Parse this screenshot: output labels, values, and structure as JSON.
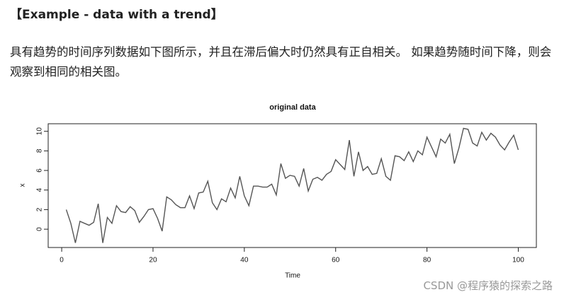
{
  "heading": "【Example - data with a trend】",
  "paragraph": "具有趋势的时间序列数据如下图所示，并且在滞后偏大时仍然具有正自相关。 如果趋势随时间下降，则会观察到相同的相关图。",
  "watermark": "CSDN @程序猿的探索之路",
  "chart_data": {
    "type": "line",
    "title": "original data",
    "x_label": "Time",
    "y_label": "x",
    "color": "#555555",
    "x": [
      1,
      2,
      3,
      4,
      5,
      6,
      7,
      8,
      9,
      10,
      11,
      12,
      13,
      14,
      15,
      16,
      17,
      18,
      19,
      20,
      21,
      22,
      23,
      24,
      25,
      26,
      27,
      28,
      29,
      30,
      31,
      32,
      33,
      34,
      35,
      36,
      37,
      38,
      39,
      40,
      41,
      42,
      43,
      44,
      45,
      46,
      47,
      48,
      49,
      50,
      51,
      52,
      53,
      54,
      55,
      56,
      57,
      58,
      59,
      60,
      61,
      62,
      63,
      64,
      65,
      66,
      67,
      68,
      69,
      70,
      71,
      72,
      73,
      74,
      75,
      76,
      77,
      78,
      79,
      80,
      81,
      82,
      83,
      84,
      85,
      86,
      87,
      88,
      89,
      90,
      91,
      92,
      93,
      94,
      95,
      96,
      97,
      98,
      99,
      100
    ],
    "values": [
      2.0,
      0.6,
      -1.4,
      0.8,
      0.6,
      0.4,
      0.7,
      2.6,
      -1.4,
      1.2,
      0.6,
      2.4,
      1.8,
      1.7,
      2.3,
      1.9,
      0.7,
      1.3,
      2.0,
      2.1,
      1.1,
      -0.2,
      3.3,
      3.0,
      2.5,
      2.2,
      2.2,
      3.4,
      2.1,
      3.7,
      3.8,
      4.9,
      2.7,
      2.0,
      3.1,
      2.8,
      4.2,
      3.2,
      5.4,
      3.4,
      2.4,
      4.4,
      4.4,
      4.3,
      4.3,
      4.6,
      3.5,
      6.7,
      5.2,
      5.5,
      5.4,
      4.4,
      6.2,
      3.9,
      5.1,
      5.3,
      5.0,
      5.6,
      5.9,
      7.1,
      6.6,
      6.1,
      9.1,
      5.4,
      7.9,
      6.0,
      6.4,
      5.6,
      5.7,
      7.2,
      5.4,
      5.0,
      7.5,
      7.4,
      7.0,
      7.9,
      6.9,
      8.0,
      7.6,
      9.4,
      8.4,
      7.4,
      9.2,
      8.8,
      9.7,
      6.7,
      8.3,
      10.3,
      10.2,
      8.8,
      8.5,
      9.9,
      9.1,
      9.8,
      9.4,
      8.6,
      8.1,
      8.9,
      9.6,
      8.1
    ],
    "xlim": [
      -2.96,
      103.96
    ],
    "ylim": [
      -1.87,
      10.77
    ],
    "xticks": [
      0,
      20,
      40,
      60,
      80,
      100
    ],
    "yticks": [
      0,
      2,
      4,
      6,
      8,
      10
    ]
  }
}
